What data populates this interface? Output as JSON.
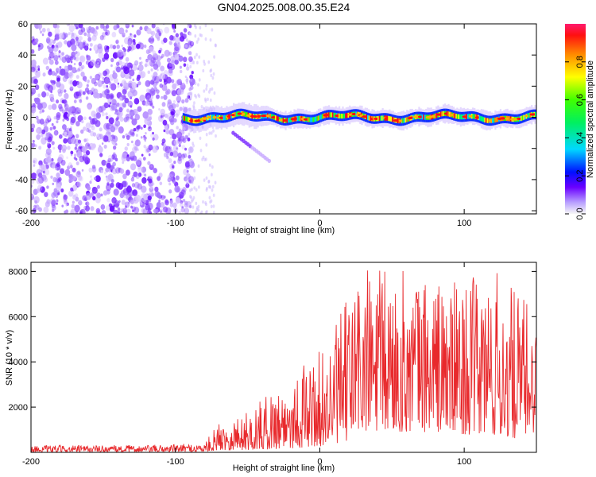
{
  "title": "GN04.2025.008.00.35.E24",
  "chart_data": [
    {
      "type": "heatmap",
      "xlabel": "Height of straight line (km)",
      "ylabel": "Frequency (Hz)",
      "xlim": [
        -200,
        150
      ],
      "ylim": [
        -62,
        60
      ],
      "xticks": [
        -200,
        -100,
        0,
        100
      ],
      "yticks": [
        60,
        40,
        20,
        0,
        -20,
        -40,
        -60
      ],
      "colorbar": {
        "label": "Normalized spectral amplitude",
        "range": [
          0,
          1
        ],
        "ticks": [
          0.0,
          0.2,
          0.4,
          0.6,
          0.8
        ],
        "colormap": [
          "#f7f7f7",
          "#6a00ff",
          "#0000ff",
          "#00e0ff",
          "#00ff00",
          "#ffff00",
          "#ff8000",
          "#ff0000",
          "#ff1a66"
        ]
      },
      "features": {
        "noise_region_x": [
          -200,
          -90
        ],
        "signal_band_x": [
          -95,
          150
        ],
        "signal_band_frequency": 0,
        "secondary_streak": {
          "x": [
            -60,
            -35
          ],
          "frequency": [
            -10,
            -28
          ]
        }
      }
    },
    {
      "type": "line",
      "xlabel": "Height of straight line (km)",
      "ylabel": "SNR (10 * v/v)",
      "xlim": [
        -200,
        150
      ],
      "ylim": [
        0,
        8400
      ],
      "xticks": [
        -200,
        -100,
        0,
        100
      ],
      "yticks": [
        2000,
        4000,
        6000,
        8000
      ],
      "color": "#e8292c",
      "envelope": [
        {
          "x": -200,
          "baseline": 20,
          "peak": 300
        },
        {
          "x": -120,
          "baseline": 20,
          "peak": 320
        },
        {
          "x": -80,
          "baseline": 30,
          "peak": 400
        },
        {
          "x": -70,
          "baseline": 100,
          "peak": 1300
        },
        {
          "x": -50,
          "baseline": 100,
          "peak": 1800
        },
        {
          "x": -30,
          "baseline": 150,
          "peak": 2900
        },
        {
          "x": -10,
          "baseline": 200,
          "peak": 4000
        },
        {
          "x": 5,
          "baseline": 300,
          "peak": 4700
        },
        {
          "x": 20,
          "baseline": 500,
          "peak": 7000
        },
        {
          "x": 25,
          "baseline": 800,
          "peak": 8300
        },
        {
          "x": 50,
          "baseline": 900,
          "peak": 8200
        },
        {
          "x": 80,
          "baseline": 900,
          "peak": 7800
        },
        {
          "x": 100,
          "baseline": 800,
          "peak": 7500
        },
        {
          "x": 120,
          "baseline": 700,
          "peak": 8300
        },
        {
          "x": 135,
          "baseline": 600,
          "peak": 7200
        },
        {
          "x": 150,
          "baseline": 900,
          "peak": 6400
        }
      ]
    }
  ]
}
